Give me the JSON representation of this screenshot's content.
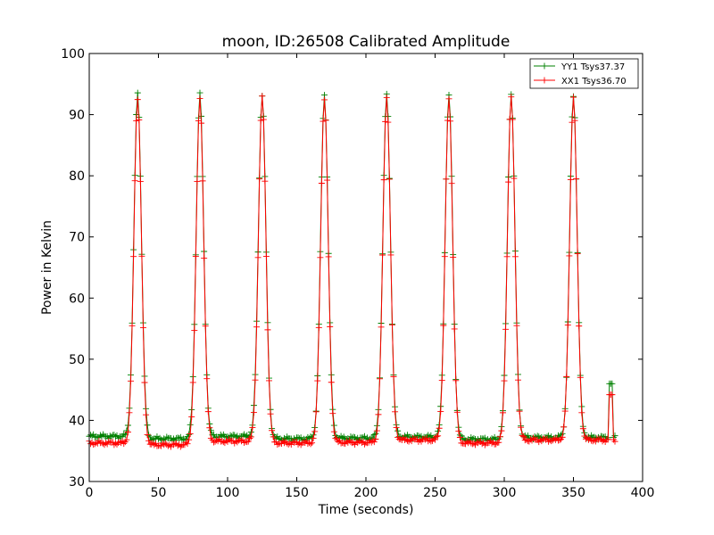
{
  "chart_data": {
    "type": "line",
    "title": "moon, ID:26508 Calibrated Amplitude",
    "xlabel": "Time (seconds)",
    "ylabel": "Power in Kelvin",
    "xlim": [
      0,
      400
    ],
    "ylim": [
      30,
      100
    ],
    "xticks": [
      0,
      50,
      100,
      150,
      200,
      250,
      300,
      350,
      400
    ],
    "yticks": [
      30,
      40,
      50,
      60,
      70,
      80,
      90,
      100
    ],
    "grid": false,
    "legend_position": "top-right",
    "marker": "+",
    "sample_interval": 1,
    "sample_range": [
      0,
      380
    ],
    "peaks": [
      {
        "time": 35,
        "yy1": 93.5,
        "xx1": 92.8
      },
      {
        "time": 80,
        "yy1": 93.3,
        "xx1": 92.6
      },
      {
        "time": 125,
        "yy1": 93.3,
        "xx1": 92.8
      },
      {
        "time": 170,
        "yy1": 93.2,
        "xx1": 92.6
      },
      {
        "time": 215,
        "yy1": 93.3,
        "xx1": 92.8
      },
      {
        "time": 260,
        "yy1": 93.2,
        "xx1": 92.6
      },
      {
        "time": 305,
        "yy1": 93.3,
        "xx1": 92.8
      },
      {
        "time": 350,
        "yy1": 93.2,
        "xx1": 92.8
      }
    ],
    "series": [
      {
        "name": "YY1 Tsys37.37",
        "color": "#008000",
        "baselines": [
          {
            "from": 0,
            "to": 35,
            "value": 37.4
          },
          {
            "from": 35,
            "to": 80,
            "value": 37.0
          },
          {
            "from": 80,
            "to": 125,
            "value": 37.4
          },
          {
            "from": 125,
            "to": 170,
            "value": 37.0
          },
          {
            "from": 170,
            "to": 215,
            "value": 37.1
          },
          {
            "from": 215,
            "to": 260,
            "value": 37.3
          },
          {
            "from": 260,
            "to": 305,
            "value": 36.9
          },
          {
            "from": 305,
            "to": 350,
            "value": 37.2
          },
          {
            "from": 350,
            "to": 382,
            "value": 37.2
          }
        ],
        "end_spike": {
          "start": 376,
          "end": 378,
          "value": 46.0
        }
      },
      {
        "name": "XX1 Tsys36.70",
        "color": "#ff0000",
        "baselines": [
          {
            "from": 0,
            "to": 35,
            "value": 36.3
          },
          {
            "from": 35,
            "to": 80,
            "value": 36.0
          },
          {
            "from": 80,
            "to": 125,
            "value": 36.6
          },
          {
            "from": 125,
            "to": 170,
            "value": 36.3
          },
          {
            "from": 170,
            "to": 215,
            "value": 36.4
          },
          {
            "from": 215,
            "to": 260,
            "value": 36.8
          },
          {
            "from": 260,
            "to": 305,
            "value": 36.3
          },
          {
            "from": 305,
            "to": 350,
            "value": 36.8
          },
          {
            "from": 350,
            "to": 382,
            "value": 36.8
          }
        ],
        "end_spike": {
          "start": 376,
          "end": 378,
          "value": 44.2
        }
      }
    ]
  }
}
